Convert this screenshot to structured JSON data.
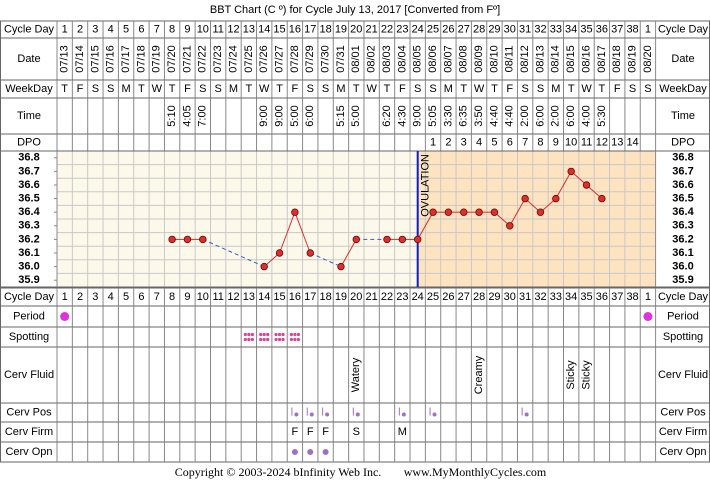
{
  "title": "BBT Chart (C º) for Cycle July 13, 2017  [Converted from Fº]",
  "row_labels": {
    "cycle_day": "Cycle Day",
    "date": "Date",
    "weekday": "WeekDay",
    "time": "Time",
    "dpo": "DPO",
    "period": "Period",
    "spotting": "Spotting",
    "cerv_fluid": "Cerv Fluid",
    "cerv_pos": "Cerv Pos",
    "cerv_firm": "Cerv Firm",
    "cerv_opn": "Cerv Opn"
  },
  "chart_data": {
    "type": "line",
    "categories": [
      1,
      2,
      3,
      4,
      5,
      6,
      7,
      8,
      9,
      10,
      11,
      12,
      13,
      14,
      15,
      16,
      17,
      18,
      19,
      20,
      21,
      22,
      23,
      24,
      25,
      26,
      27,
      28,
      29,
      30,
      31,
      32,
      33,
      34,
      35,
      36,
      37,
      38,
      1
    ],
    "dates": [
      "07/13",
      "07/14",
      "07/15",
      "07/16",
      "07/17",
      "07/18",
      "07/19",
      "07/20",
      "07/21",
      "07/22",
      "07/23",
      "07/24",
      "07/25",
      "07/26",
      "07/27",
      "07/28",
      "07/29",
      "07/30",
      "07/31",
      "08/01",
      "08/02",
      "08/03",
      "08/04",
      "08/05",
      "08/06",
      "08/07",
      "08/08",
      "08/09",
      "08/10",
      "08/11",
      "08/12",
      "08/13",
      "08/14",
      "08/15",
      "08/16",
      "08/17",
      "08/18",
      "08/19",
      "08/20"
    ],
    "weekdays": [
      "T",
      "F",
      "S",
      "S",
      "M",
      "T",
      "W",
      "T",
      "F",
      "S",
      "S",
      "M",
      "T",
      "W",
      "T",
      "F",
      "S",
      "S",
      "M",
      "T",
      "W",
      "T",
      "F",
      "S",
      "S",
      "M",
      "T",
      "W",
      "T",
      "F",
      "S",
      "S",
      "M",
      "T",
      "W",
      "T",
      "F",
      "S",
      "S"
    ],
    "times": [
      null,
      null,
      null,
      null,
      null,
      null,
      null,
      "5:10",
      "4:05",
      "7:00",
      null,
      null,
      null,
      "9:00",
      "9:00",
      "5:00",
      "6:00",
      null,
      "5:15",
      "5:00",
      null,
      "6:20",
      "4:30",
      "9:00",
      "5:05",
      "3:30",
      "6:35",
      "3:50",
      "4:40",
      "4:40",
      "2:00",
      "6:00",
      "2:00",
      "6:00",
      "4:00",
      "5:30",
      null,
      null,
      null
    ],
    "dpo": [
      null,
      null,
      null,
      null,
      null,
      null,
      null,
      null,
      null,
      null,
      null,
      null,
      null,
      null,
      null,
      null,
      null,
      null,
      null,
      null,
      null,
      null,
      null,
      null,
      1,
      2,
      3,
      4,
      5,
      6,
      7,
      8,
      9,
      10,
      11,
      12,
      13,
      14,
      null
    ],
    "values": [
      null,
      null,
      null,
      null,
      null,
      null,
      null,
      36.2,
      36.2,
      36.2,
      null,
      null,
      null,
      36.0,
      36.1,
      36.4,
      36.1,
      null,
      36.0,
      36.2,
      null,
      36.2,
      36.2,
      36.2,
      36.4,
      36.4,
      36.4,
      36.4,
      36.4,
      36.3,
      36.5,
      36.4,
      36.5,
      36.7,
      36.6,
      36.5,
      null,
      null,
      null
    ],
    "color": "#d93030",
    "ylim": [
      35.85,
      36.85
    ],
    "yticks": [
      {
        "value": 36.8,
        "label": "36.8"
      },
      {
        "value": 36.7,
        "label": "36.7"
      },
      {
        "value": 36.6,
        "label": "36.6"
      },
      {
        "value": 36.5,
        "label": "36.5"
      },
      {
        "value": 36.4,
        "label": "36.4"
      },
      {
        "value": 36.3,
        "label": "36.3"
      },
      {
        "value": 36.2,
        "label": "36.2"
      },
      {
        "value": 36.1,
        "label": "36.1"
      },
      {
        "value": 36.0,
        "label": "36.0"
      },
      {
        "value": 35.9,
        "label": "35.9"
      }
    ],
    "ovulation_day": 24,
    "ovulation_label": "OVULATION",
    "period": [
      true,
      null,
      null,
      null,
      null,
      null,
      null,
      null,
      null,
      null,
      null,
      null,
      null,
      null,
      null,
      null,
      null,
      null,
      null,
      null,
      null,
      null,
      null,
      null,
      null,
      null,
      null,
      null,
      null,
      null,
      null,
      null,
      null,
      null,
      null,
      null,
      null,
      null,
      true
    ],
    "spotting": [
      null,
      null,
      null,
      null,
      null,
      null,
      null,
      null,
      null,
      null,
      null,
      null,
      true,
      true,
      true,
      true,
      null,
      null,
      null,
      null,
      null,
      null,
      null,
      null,
      null,
      null,
      null,
      null,
      null,
      null,
      null,
      null,
      null,
      null,
      null,
      null,
      null,
      null,
      null
    ],
    "cerv_fluid": [
      null,
      null,
      null,
      null,
      null,
      null,
      null,
      null,
      null,
      null,
      null,
      null,
      null,
      null,
      null,
      null,
      null,
      null,
      null,
      "Watery",
      null,
      null,
      null,
      null,
      null,
      null,
      null,
      "Creamy",
      null,
      null,
      null,
      null,
      null,
      "Sticky",
      "Sticky",
      null,
      null,
      null,
      null
    ],
    "cerv_pos": [
      null,
      null,
      null,
      null,
      null,
      null,
      null,
      null,
      null,
      null,
      null,
      null,
      null,
      null,
      null,
      true,
      true,
      true,
      null,
      true,
      null,
      null,
      true,
      null,
      true,
      null,
      null,
      null,
      null,
      null,
      true,
      null,
      null,
      null,
      null,
      null,
      null,
      null,
      null
    ],
    "cerv_firm": [
      null,
      null,
      null,
      null,
      null,
      null,
      null,
      null,
      null,
      null,
      null,
      null,
      null,
      null,
      null,
      "F",
      "F",
      "F",
      null,
      "S",
      null,
      null,
      "M",
      null,
      null,
      null,
      null,
      null,
      null,
      null,
      null,
      null,
      null,
      null,
      null,
      null,
      null,
      null,
      null
    ],
    "cerv_opn": [
      null,
      null,
      null,
      null,
      null,
      null,
      null,
      null,
      null,
      null,
      null,
      null,
      null,
      null,
      null,
      true,
      true,
      true,
      null,
      null,
      null,
      null,
      null,
      null,
      null,
      null,
      null,
      null,
      null,
      null,
      null,
      null,
      null,
      null,
      null,
      null,
      null,
      null,
      null
    ]
  },
  "footer": {
    "copyright": "Copyright © 2003-2024 bInfinity Web Inc.",
    "site": "www.MyMonthlyCycles.com"
  }
}
